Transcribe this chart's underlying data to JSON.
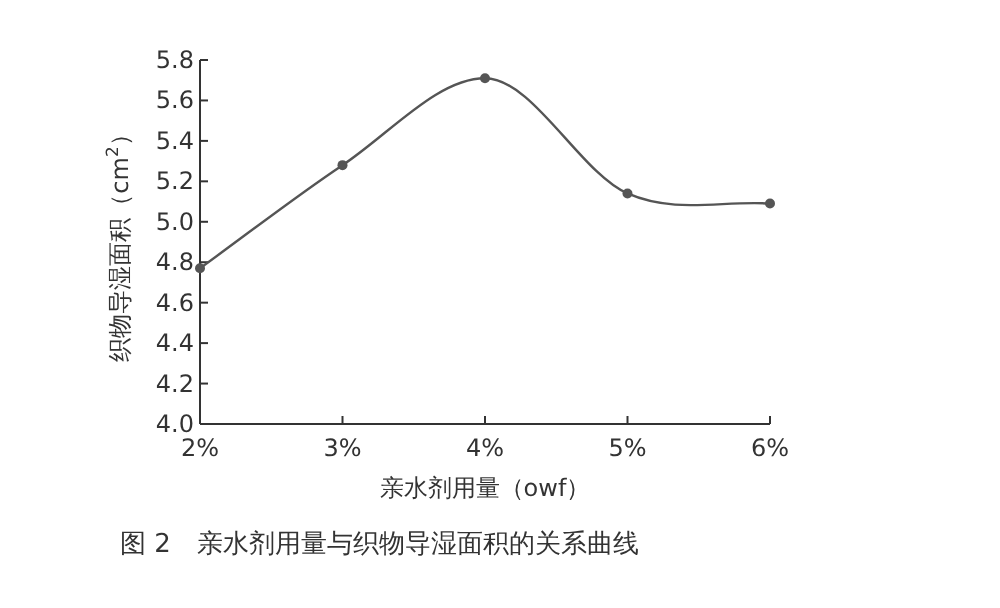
{
  "chart_data": {
    "type": "line",
    "xlabel": "亲水剂用量（owf）",
    "ylabel": "织物导湿面积（cm$^{2}$）",
    "annotations": [
      "图 2　亲水剂用量与织物导湿面积的关系曲线"
    ],
    "categories": [
      "2%",
      "3%",
      "4%",
      "5%",
      "6%"
    ],
    "series": [
      {
        "color": "#555555",
        "values": [
          4.77,
          5.28,
          5.71,
          5.14,
          5.09
        ]
      }
    ],
    "ylim": [
      4.0,
      5.8
    ],
    "yticks": [
      {
        "value": 4,
        "label": "4.0"
      },
      4.2,
      4.4,
      4.6,
      4.8,
      {
        "value": 5,
        "label": "5.0"
      },
      5.2,
      5.4,
      5.6,
      5.8
    ],
    "marker": "circle",
    "line_style": "solid",
    "grid": false
  }
}
